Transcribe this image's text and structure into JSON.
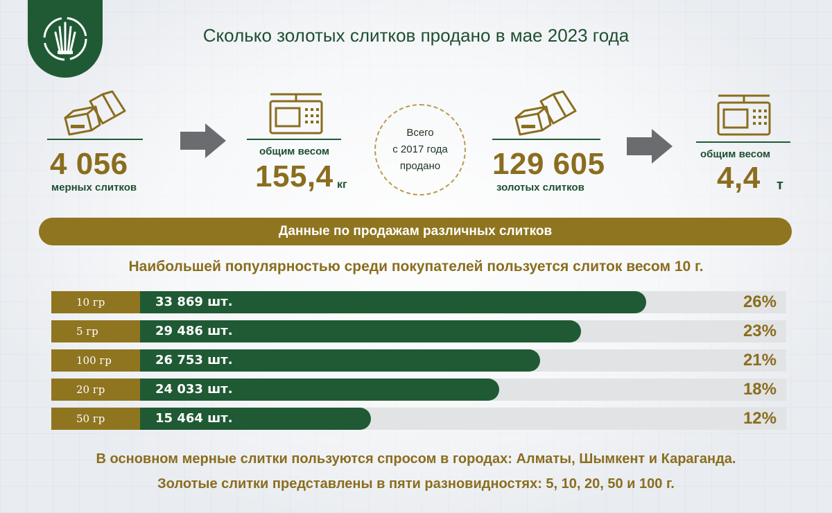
{
  "title": "Сколько золотых слитков продано в мае 2023 года",
  "stats": {
    "measured_count": "4 056",
    "measured_label": "мерных слитков",
    "weight1_caption": "общим весом",
    "weight1_value": "155,4",
    "weight1_unit": "кг",
    "circle_line1": "Всего",
    "circle_line2": "с 2017 года",
    "circle_line3": "продано",
    "total_count": "129 605",
    "total_label": "золотых слитков",
    "weight2_caption": "общим весом",
    "weight2_value": "4,4",
    "weight2_unit": "т"
  },
  "banner": "Данные по продажам различных слитков",
  "subtitle": "Наибольшей популярностью среди покупателей пользуется слиток весом 10 г.",
  "colors": {
    "green": "#1f5a34",
    "gold": "#8f7520",
    "track": "#e2e3e5"
  },
  "chart_data": {
    "type": "bar",
    "orientation": "horizontal",
    "categories": [
      "10 гр",
      "5 гр",
      "100 гр",
      "20 гр",
      "50 гр"
    ],
    "values": [
      33869,
      29486,
      26753,
      24033,
      15464
    ],
    "value_labels": [
      "33 869 шт.",
      "29 486 шт.",
      "26 753 шт.",
      "24 033 шт.",
      "15 464 шт."
    ],
    "percent_labels": [
      "26%",
      "23%",
      "21%",
      "18%",
      "12%"
    ]
  },
  "footer": {
    "line1": "В основном мерные слитки пользуются спросом в городах: Алматы, Шымкент и Караганда.",
    "line2": "Золотые слитки представлены в пяти разновидностях: 5, 10, 20, 50 и 100 г."
  }
}
